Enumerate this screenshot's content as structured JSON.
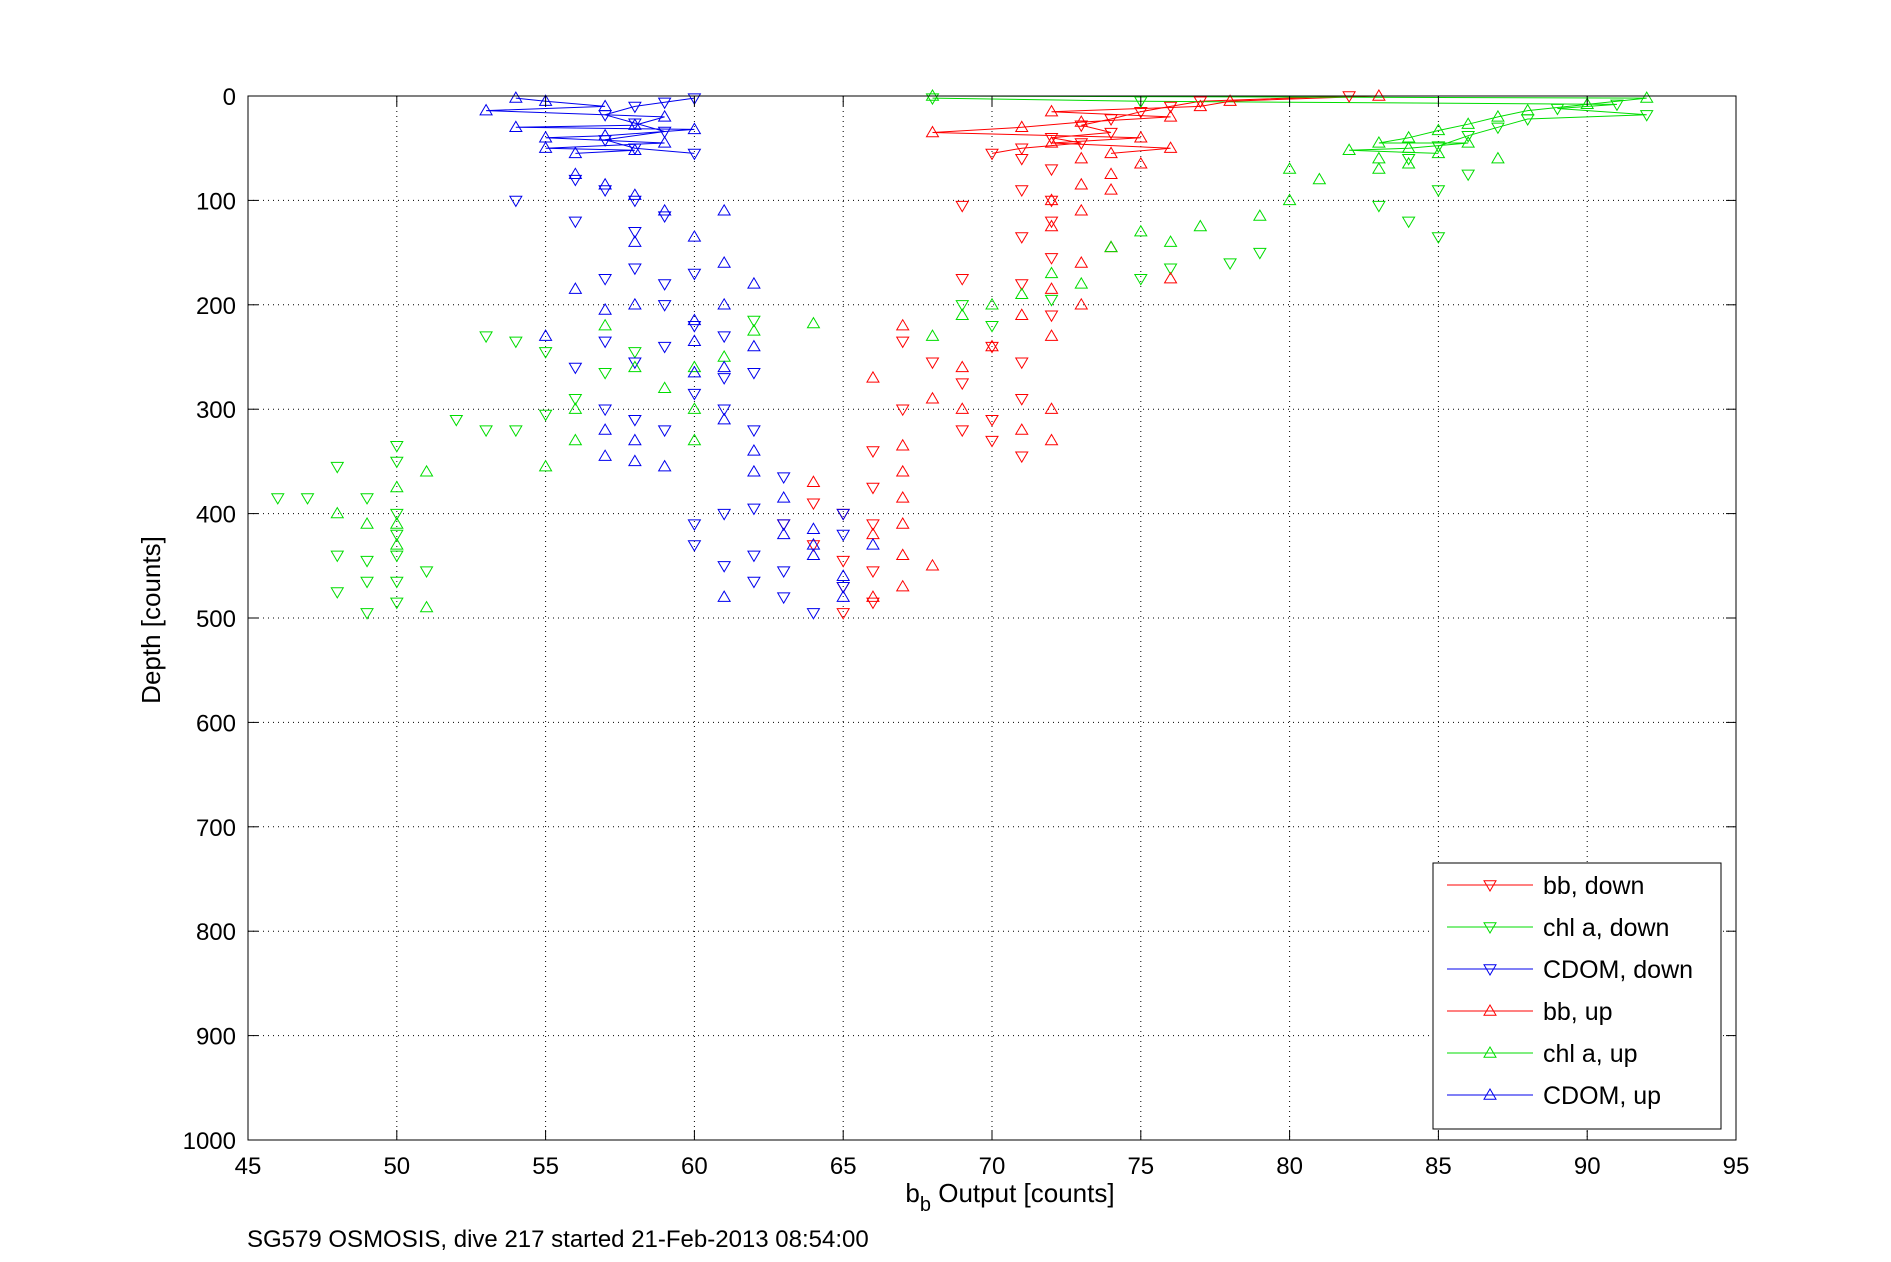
{
  "caption": "SG579 OSMOSIS, dive 217 started 21-Feb-2013 08:54:00",
  "chart_data": {
    "type": "scatter",
    "xlabel_base": "b",
    "xlabel_sub": "b",
    "xlabel_rest": " Output [counts]",
    "ylabel": "Depth [counts]",
    "xlim": [
      45,
      95
    ],
    "ylim": [
      0,
      1000
    ],
    "y_reversed": true,
    "xticks": [
      45,
      50,
      55,
      60,
      65,
      70,
      75,
      80,
      85,
      90,
      95
    ],
    "yticks": [
      0,
      100,
      200,
      300,
      400,
      500,
      600,
      700,
      800,
      900,
      1000
    ],
    "grid": true,
    "legend_position": "bottom-right",
    "series": [
      {
        "name": "bb, down",
        "color": "#ff0000",
        "marker": "triangle-down",
        "connect_top": true,
        "points": [
          [
            82,
            0
          ],
          [
            77,
            5
          ],
          [
            76,
            10
          ],
          [
            75,
            15
          ],
          [
            74,
            22
          ],
          [
            73,
            28
          ],
          [
            74,
            35
          ],
          [
            72,
            40
          ],
          [
            73,
            45
          ],
          [
            71,
            50
          ],
          [
            70,
            55
          ],
          [
            71,
            60
          ],
          [
            72,
            70
          ],
          [
            71,
            90
          ],
          [
            72,
            100
          ],
          [
            69,
            105
          ],
          [
            72,
            120
          ],
          [
            71,
            135
          ],
          [
            72,
            155
          ],
          [
            69,
            175
          ],
          [
            71,
            180
          ],
          [
            72,
            210
          ],
          [
            70,
            240
          ],
          [
            71,
            255
          ],
          [
            69,
            275
          ],
          [
            71,
            290
          ],
          [
            70,
            310
          ],
          [
            69,
            320
          ],
          [
            70,
            330
          ],
          [
            71,
            345
          ],
          [
            67,
            235
          ],
          [
            68,
            255
          ],
          [
            67,
            300
          ],
          [
            66,
            340
          ],
          [
            66,
            375
          ],
          [
            65,
            400
          ],
          [
            66,
            410
          ],
          [
            64,
            430
          ],
          [
            65,
            445
          ],
          [
            66,
            455
          ],
          [
            65,
            470
          ],
          [
            66,
            485
          ],
          [
            65,
            495
          ],
          [
            63,
            410
          ],
          [
            64,
            390
          ]
        ]
      },
      {
        "name": "chl a, down",
        "color": "#00dd00",
        "marker": "triangle-down",
        "connect_top": true,
        "points": [
          [
            68,
            2
          ],
          [
            75,
            5
          ],
          [
            92,
            18
          ],
          [
            91,
            8
          ],
          [
            89,
            12
          ],
          [
            88,
            22
          ],
          [
            87,
            30
          ],
          [
            86,
            38
          ],
          [
            85,
            48
          ],
          [
            84,
            60
          ],
          [
            86,
            75
          ],
          [
            85,
            90
          ],
          [
            83,
            105
          ],
          [
            84,
            120
          ],
          [
            85,
            135
          ],
          [
            78,
            160
          ],
          [
            79,
            150
          ],
          [
            76,
            165
          ],
          [
            75,
            175
          ],
          [
            72,
            195
          ],
          [
            70,
            220
          ],
          [
            69,
            200
          ],
          [
            62,
            215
          ],
          [
            58,
            245
          ],
          [
            57,
            265
          ],
          [
            56,
            290
          ],
          [
            55,
            305
          ],
          [
            54,
            320
          ],
          [
            53,
            320
          ],
          [
            52,
            310
          ],
          [
            55,
            245
          ],
          [
            53,
            230
          ],
          [
            54,
            235
          ],
          [
            50,
            335
          ],
          [
            50,
            350
          ],
          [
            49,
            385
          ],
          [
            48,
            355
          ],
          [
            47,
            385
          ],
          [
            48,
            440
          ],
          [
            49,
            445
          ],
          [
            48,
            475
          ],
          [
            49,
            495
          ],
          [
            50,
            400
          ],
          [
            50,
            420
          ],
          [
            50,
            465
          ],
          [
            50,
            485
          ],
          [
            49,
            465
          ],
          [
            50,
            440
          ],
          [
            46,
            385
          ],
          [
            51,
            455
          ]
        ]
      },
      {
        "name": "CDOM, down",
        "color": "#0000ee",
        "marker": "triangle-down",
        "connect_top": true,
        "points": [
          [
            60,
            2
          ],
          [
            59,
            6
          ],
          [
            58,
            10
          ],
          [
            57,
            18
          ],
          [
            58,
            26
          ],
          [
            59,
            34
          ],
          [
            57,
            42
          ],
          [
            58,
            50
          ],
          [
            60,
            55
          ],
          [
            56,
            80
          ],
          [
            54,
            100
          ],
          [
            57,
            90
          ],
          [
            58,
            100
          ],
          [
            59,
            115
          ],
          [
            58,
            130
          ],
          [
            56,
            120
          ],
          [
            57,
            175
          ],
          [
            58,
            165
          ],
          [
            59,
            180
          ],
          [
            60,
            170
          ],
          [
            59,
            200
          ],
          [
            60,
            220
          ],
          [
            61,
            230
          ],
          [
            59,
            240
          ],
          [
            57,
            235
          ],
          [
            58,
            255
          ],
          [
            56,
            260
          ],
          [
            57,
            300
          ],
          [
            58,
            310
          ],
          [
            59,
            320
          ],
          [
            60,
            285
          ],
          [
            61,
            270
          ],
          [
            62,
            265
          ],
          [
            61,
            300
          ],
          [
            62,
            320
          ],
          [
            63,
            365
          ],
          [
            62,
            395
          ],
          [
            63,
            410
          ],
          [
            61,
            400
          ],
          [
            62,
            440
          ],
          [
            63,
            455
          ],
          [
            62,
            465
          ],
          [
            61,
            450
          ],
          [
            63,
            480
          ],
          [
            60,
            430
          ],
          [
            60,
            410
          ],
          [
            64,
            495
          ],
          [
            65,
            470
          ],
          [
            65,
            400
          ],
          [
            65,
            420
          ]
        ]
      },
      {
        "name": "bb, up",
        "color": "#ff0000",
        "marker": "triangle-up",
        "connect_top": true,
        "points": [
          [
            83,
            0
          ],
          [
            78,
            5
          ],
          [
            77,
            10
          ],
          [
            72,
            15
          ],
          [
            76,
            20
          ],
          [
            73,
            25
          ],
          [
            71,
            30
          ],
          [
            68,
            35
          ],
          [
            75,
            40
          ],
          [
            72,
            45
          ],
          [
            76,
            50
          ],
          [
            74,
            55
          ],
          [
            73,
            60
          ],
          [
            75,
            65
          ],
          [
            74,
            75
          ],
          [
            73,
            85
          ],
          [
            74,
            90
          ],
          [
            72,
            100
          ],
          [
            73,
            110
          ],
          [
            72,
            125
          ],
          [
            74,
            145
          ],
          [
            73,
            160
          ],
          [
            76,
            175
          ],
          [
            72,
            185
          ],
          [
            73,
            200
          ],
          [
            71,
            210
          ],
          [
            72,
            230
          ],
          [
            70,
            240
          ],
          [
            69,
            260
          ],
          [
            68,
            290
          ],
          [
            69,
            300
          ],
          [
            71,
            320
          ],
          [
            72,
            300
          ],
          [
            72,
            330
          ],
          [
            67,
            335
          ],
          [
            67,
            360
          ],
          [
            67,
            385
          ],
          [
            67,
            410
          ],
          [
            67,
            440
          ],
          [
            66,
            420
          ],
          [
            66,
            480
          ],
          [
            67,
            470
          ],
          [
            68,
            450
          ],
          [
            66,
            270
          ],
          [
            67,
            220
          ],
          [
            64,
            370
          ]
        ]
      },
      {
        "name": "chl a, up",
        "color": "#00dd00",
        "marker": "triangle-up",
        "connect_top": true,
        "points": [
          [
            68,
            0
          ],
          [
            92,
            2
          ],
          [
            90,
            8
          ],
          [
            88,
            14
          ],
          [
            87,
            20
          ],
          [
            86,
            27
          ],
          [
            85,
            33
          ],
          [
            84,
            40
          ],
          [
            83,
            45
          ],
          [
            82,
            52
          ],
          [
            83,
            60
          ],
          [
            84,
            65
          ],
          [
            83,
            70
          ],
          [
            87,
            60
          ],
          [
            86,
            45
          ],
          [
            85,
            55
          ],
          [
            84,
            50
          ],
          [
            80,
            70
          ],
          [
            81,
            80
          ],
          [
            80,
            100
          ],
          [
            79,
            115
          ],
          [
            77,
            125
          ],
          [
            76,
            140
          ],
          [
            75,
            130
          ],
          [
            74,
            145
          ],
          [
            73,
            180
          ],
          [
            72,
            170
          ],
          [
            71,
            190
          ],
          [
            70,
            200
          ],
          [
            69,
            210
          ],
          [
            68,
            230
          ],
          [
            64,
            218
          ],
          [
            62,
            225
          ],
          [
            61,
            250
          ],
          [
            60,
            260
          ],
          [
            60,
            300
          ],
          [
            60,
            330
          ],
          [
            59,
            280
          ],
          [
            58,
            260
          ],
          [
            57,
            220
          ],
          [
            56,
            300
          ],
          [
            55,
            355
          ],
          [
            56,
            330
          ],
          [
            51,
            360
          ],
          [
            50,
            375
          ],
          [
            50,
            410
          ],
          [
            50,
            430
          ],
          [
            51,
            490
          ],
          [
            49,
            410
          ],
          [
            48,
            400
          ]
        ]
      },
      {
        "name": "CDOM, up",
        "color": "#0000ee",
        "marker": "triangle-up",
        "connect_top": true,
        "points": [
          [
            54,
            2
          ],
          [
            53,
            14
          ],
          [
            55,
            5
          ],
          [
            57,
            10
          ],
          [
            59,
            20
          ],
          [
            58,
            28
          ],
          [
            60,
            32
          ],
          [
            57,
            38
          ],
          [
            59,
            45
          ],
          [
            58,
            52
          ],
          [
            56,
            55
          ],
          [
            55,
            50
          ],
          [
            55,
            40
          ],
          [
            54,
            30
          ],
          [
            56,
            75
          ],
          [
            57,
            85
          ],
          [
            58,
            95
          ],
          [
            59,
            110
          ],
          [
            58,
            140
          ],
          [
            60,
            135
          ],
          [
            61,
            110
          ],
          [
            61,
            160
          ],
          [
            62,
            180
          ],
          [
            61,
            200
          ],
          [
            60,
            215
          ],
          [
            62,
            240
          ],
          [
            61,
            260
          ],
          [
            60,
            265
          ],
          [
            61,
            310
          ],
          [
            62,
            340
          ],
          [
            62,
            360
          ],
          [
            63,
            385
          ],
          [
            63,
            420
          ],
          [
            64,
            430
          ],
          [
            64,
            440
          ],
          [
            65,
            460
          ],
          [
            65,
            480
          ],
          [
            66,
            430
          ],
          [
            64,
            415
          ],
          [
            61,
            480
          ],
          [
            60,
            235
          ],
          [
            58,
            200
          ],
          [
            57,
            205
          ],
          [
            56,
            185
          ],
          [
            55,
            230
          ],
          [
            57,
            320
          ],
          [
            58,
            330
          ],
          [
            58,
            350
          ],
          [
            57,
            345
          ],
          [
            59,
            355
          ]
        ]
      }
    ]
  }
}
